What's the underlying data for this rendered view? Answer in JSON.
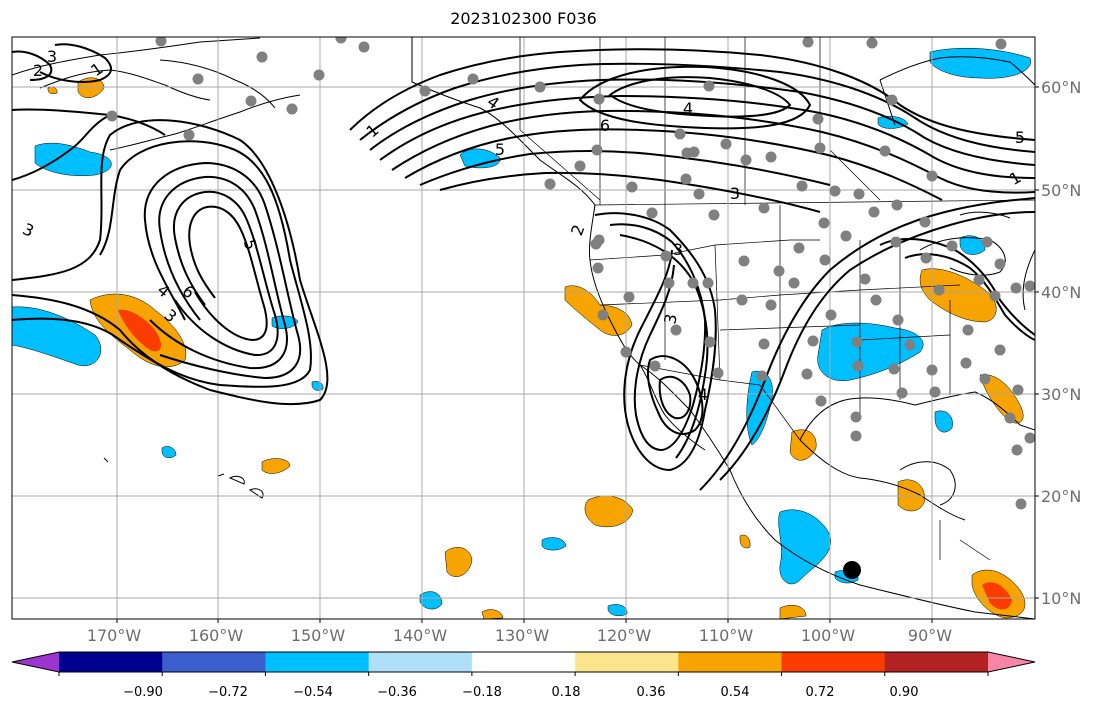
{
  "title": "2023102300 F036",
  "lat_labels": [
    "60°N",
    "50°N",
    "40°N",
    "30°N",
    "20°N",
    "10°N"
  ],
  "lon_labels": [
    "170°W",
    "160°W",
    "150°W",
    "140°W",
    "130°W",
    "120°W",
    "110°W",
    "100°W",
    "90°W"
  ],
  "colorbar": {
    "tick_labels": [
      "−0.90",
      "−0.72",
      "−0.54",
      "−0.36",
      "−0.18",
      "0.18",
      "0.36",
      "0.54",
      "0.72",
      "0.90"
    ],
    "colors": [
      "#9c35d0",
      "#000090",
      "#3a5fcd",
      "#00bfff",
      "#b0e0f8",
      "#ffffff",
      "#fbe58a",
      "#f7a400",
      "#fb3c00",
      "#b22222",
      "#f785a8"
    ]
  },
  "contour_labels": [
    "1",
    "2",
    "3",
    "3",
    "4",
    "5",
    "6",
    "1",
    "2",
    "3",
    "4",
    "5",
    "6",
    "4",
    "1",
    "5",
    "3",
    "3",
    "3",
    "4"
  ],
  "colors": {
    "grid": "#a8a8a8",
    "contour": "#000000",
    "coast": "#000000",
    "station_dot": "#808080",
    "marker": "#000000"
  }
}
